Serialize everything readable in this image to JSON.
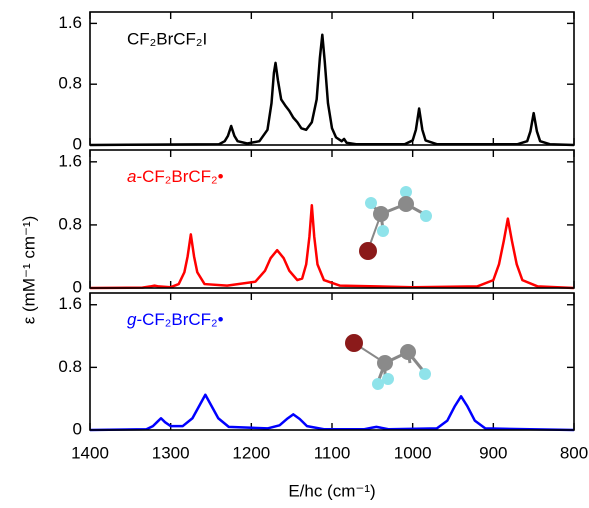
{
  "chart_data": [
    {
      "type": "line",
      "title": "CF₂BrCF₂I",
      "color": "#000000",
      "xlim": [
        1400,
        800
      ],
      "ylim": [
        0,
        1.75
      ],
      "yticks": [
        0,
        0.8,
        1.6
      ],
      "x": [
        1400,
        1240,
        1233,
        1229,
        1225,
        1221,
        1217,
        1205,
        1190,
        1180,
        1175,
        1172,
        1170,
        1167,
        1163,
        1158,
        1153,
        1148,
        1143,
        1138,
        1132,
        1125,
        1119,
        1115,
        1112,
        1109,
        1105,
        1100,
        1095,
        1088,
        1085,
        1082,
        1070,
        1010,
        1000,
        996,
        992,
        988,
        984,
        970,
        870,
        858,
        854,
        850,
        846,
        842,
        830,
        800
      ],
      "values": [
        0,
        0.01,
        0.05,
        0.12,
        0.25,
        0.12,
        0.05,
        0.02,
        0.05,
        0.2,
        0.55,
        0.95,
        1.08,
        0.85,
        0.6,
        0.52,
        0.45,
        0.36,
        0.3,
        0.22,
        0.2,
        0.3,
        0.6,
        1.15,
        1.45,
        1.1,
        0.55,
        0.22,
        0.1,
        0.05,
        0.08,
        0.03,
        0.01,
        0.01,
        0.06,
        0.2,
        0.48,
        0.2,
        0.06,
        0.01,
        0.01,
        0.05,
        0.18,
        0.42,
        0.18,
        0.05,
        0.01,
        0
      ]
    },
    {
      "type": "line",
      "title": "a-CF₂BrCF₂•",
      "color": "#ff0000",
      "ylabel": "ε (mM⁻¹ cm⁻¹)",
      "xlim": [
        1400,
        800
      ],
      "ylim": [
        0,
        1.75
      ],
      "yticks": [
        0,
        0.8,
        1.6
      ],
      "x": [
        1400,
        1335,
        1325,
        1320,
        1315,
        1300,
        1290,
        1283,
        1279,
        1275,
        1271,
        1267,
        1258,
        1230,
        1195,
        1183,
        1176,
        1168,
        1160,
        1153,
        1143,
        1137,
        1132,
        1128,
        1125,
        1122,
        1118,
        1110,
        1090,
        1000,
        920,
        900,
        893,
        887,
        882,
        877,
        871,
        864,
        845,
        800
      ],
      "values": [
        0,
        0.005,
        0.02,
        0.03,
        0.02,
        0.01,
        0.05,
        0.2,
        0.4,
        0.68,
        0.4,
        0.2,
        0.05,
        0.03,
        0.08,
        0.22,
        0.38,
        0.48,
        0.38,
        0.22,
        0.1,
        0.12,
        0.3,
        0.65,
        1.05,
        0.65,
        0.3,
        0.1,
        0.03,
        0.01,
        0.02,
        0.1,
        0.3,
        0.6,
        0.88,
        0.6,
        0.3,
        0.1,
        0.02,
        0
      ]
    },
    {
      "type": "line",
      "title": "g-CF₂BrCF₂•",
      "color": "#0000ff",
      "xlabel": "E/hc (cm⁻¹)",
      "xlim": [
        1400,
        800
      ],
      "xticks": [
        1400,
        1300,
        1200,
        1100,
        1000,
        900,
        800
      ],
      "ylim": [
        0,
        1.75
      ],
      "yticks": [
        0,
        0.8,
        1.6
      ],
      "x": [
        1400,
        1330,
        1322,
        1317,
        1312,
        1307,
        1300,
        1285,
        1273,
        1265,
        1257,
        1249,
        1241,
        1228,
        1180,
        1165,
        1156,
        1148,
        1140,
        1131,
        1110,
        1060,
        1050,
        1045,
        1040,
        1030,
        970,
        957,
        948,
        940,
        932,
        923,
        910,
        800
      ],
      "values": [
        0,
        0.01,
        0.05,
        0.1,
        0.15,
        0.1,
        0.05,
        0.05,
        0.15,
        0.3,
        0.45,
        0.3,
        0.15,
        0.04,
        0.02,
        0.06,
        0.14,
        0.2,
        0.14,
        0.05,
        0.01,
        0.01,
        0.03,
        0.04,
        0.03,
        0.01,
        0.02,
        0.12,
        0.3,
        0.43,
        0.3,
        0.12,
        0.02,
        0
      ]
    }
  ]
}
